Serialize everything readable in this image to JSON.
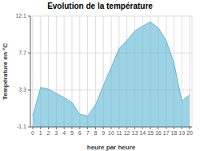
{
  "chart_data": {
    "type": "area",
    "title": "Evolution de la température",
    "xlabel": "heure par heure",
    "ylabel": "Température en °C",
    "x": [
      0,
      1,
      2,
      3,
      4,
      5,
      6,
      7,
      8,
      9,
      10,
      11,
      12,
      13,
      14,
      15,
      16,
      17,
      18,
      19,
      20
    ],
    "values": [
      0.2,
      3.6,
      3.4,
      2.9,
      2.4,
      1.8,
      0.4,
      0.2,
      1.5,
      3.8,
      6.0,
      8.2,
      9.2,
      10.3,
      10.9,
      11.4,
      10.7,
      9.2,
      6.5,
      2.0,
      2.7
    ],
    "color": "#5ab8d4",
    "xlim": [
      -0.3,
      20.3
    ],
    "xticks": [
      0,
      1,
      2,
      3,
      4,
      5,
      6,
      7,
      8,
      9,
      10,
      11,
      12,
      13,
      14,
      15,
      16,
      17,
      18,
      19,
      20
    ],
    "ylim": [
      -1.1,
      12.1
    ],
    "yticks": [
      -1.1,
      3.3,
      7.7,
      12.1
    ],
    "grid": true
  }
}
